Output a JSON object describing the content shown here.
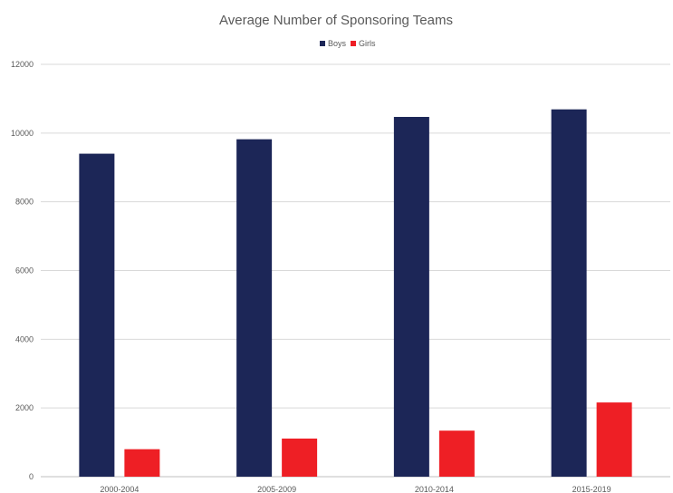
{
  "chart_data": {
    "type": "bar",
    "title": "Average Number of Sponsoring Teams",
    "categories": [
      "2000-2004",
      "2005-2009",
      "2010-2014",
      "2015-2019"
    ],
    "series": [
      {
        "name": "Boys",
        "color": "#1c2657",
        "values": [
          9400,
          9820,
          10470,
          10690
        ]
      },
      {
        "name": "Girls",
        "color": "#ee1f25",
        "values": [
          800,
          1110,
          1340,
          2160
        ]
      }
    ],
    "xlabel": "",
    "ylabel": "",
    "ylim": [
      0,
      12000
    ],
    "yticks": [
      "0",
      "2000",
      "4000",
      "6000",
      "8000",
      "10000",
      "12000"
    ],
    "grid": true,
    "legend_position": "top-center"
  }
}
